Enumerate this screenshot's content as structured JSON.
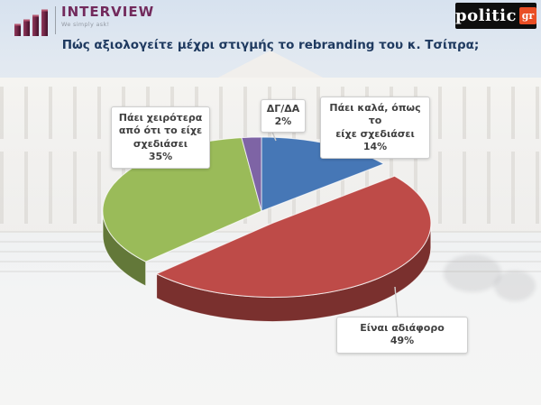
{
  "brand": {
    "interview": {
      "name": "INTERVIEW",
      "tagline": "We simply ask!"
    },
    "politic": {
      "name": "politic",
      "tld": "gr"
    }
  },
  "title": "Πώς αξιολογείτε μέχρι στιγμής το rebranding του κ. Τσίπρα;",
  "chart_data": {
    "type": "pie",
    "is_3d": true,
    "direction": "clockwise",
    "start_angle_deg": 0,
    "unit": "%",
    "title": "Πώς αξιολογείτε μέχρι στιγμής το rebranding του κ. Τσίπρα;",
    "slices": [
      {
        "label": "Πάει καλά, όπως το είχε σχεδιάσει",
        "value": 14,
        "color": "#4677B6",
        "exploded": false
      },
      {
        "label": "Είναι αδιάφορο",
        "value": 49,
        "color": "#BE4B48",
        "exploded": true
      },
      {
        "label": "Πάει χειρότερα από ότι το είχε σχεδιάσει",
        "value": 35,
        "color": "#9ABB59",
        "exploded": false
      },
      {
        "label": "ΔΓ/ΔΑ",
        "value": 2,
        "color": "#7E64A5",
        "exploded": false
      }
    ]
  },
  "callouts": {
    "dk": {
      "lines": [
        "ΔΓ/ΔΑ",
        "2%"
      ]
    },
    "good": {
      "lines": [
        "Πάει καλά, όπως το",
        "είχε σχεδιάσει",
        "14%"
      ]
    },
    "worse": {
      "lines": [
        "Πάει χειρότερα",
        "από ότι το είχε",
        "σχεδιάσει",
        "35%"
      ]
    },
    "indifferent": {
      "lines": [
        "Είναι αδιάφορο",
        "49%"
      ]
    }
  }
}
